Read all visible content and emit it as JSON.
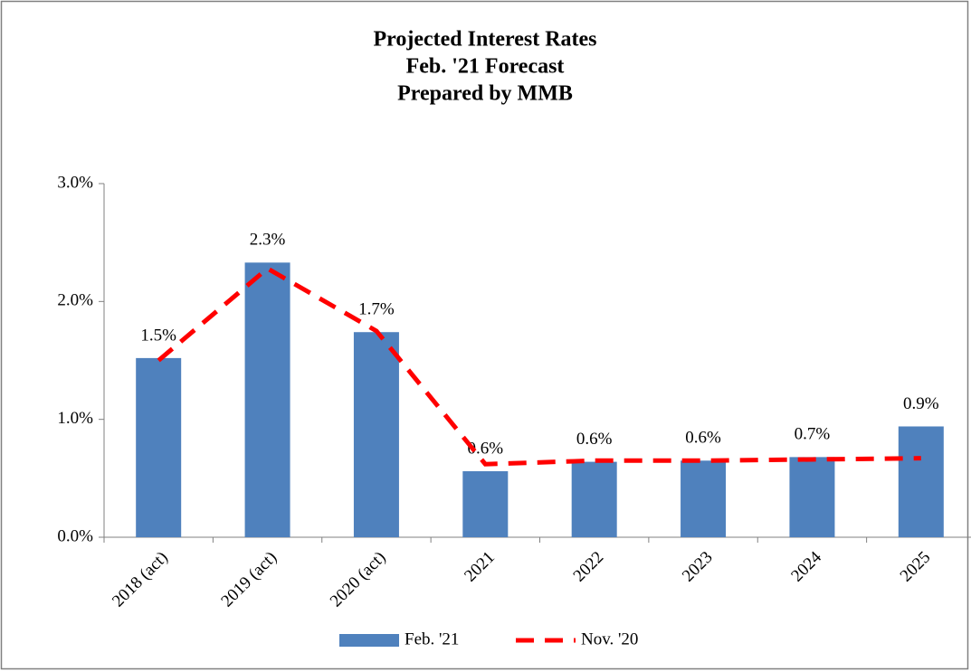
{
  "chart_data": {
    "type": "bar",
    "title": [
      "Projected Interest Rates",
      "Feb. '21 Forecast",
      "Prepared by MMB"
    ],
    "categories": [
      "2018 (act)",
      "2019 (act)",
      "2020 (act)",
      "2021",
      "2022",
      "2023",
      "2024",
      "2025"
    ],
    "series": [
      {
        "name": "Feb. '21",
        "type": "bar",
        "color": "#4f81bd",
        "values": [
          1.52,
          2.33,
          1.74,
          0.56,
          0.64,
          0.65,
          0.68,
          0.94
        ],
        "value_labels": [
          "1.5%",
          "2.3%",
          "1.7%",
          "0.6%",
          "0.6%",
          "0.6%",
          "0.7%",
          "0.9%"
        ]
      },
      {
        "name": "Nov. '20",
        "type": "line",
        "color": "#ff0000",
        "values": [
          1.5,
          2.28,
          1.75,
          0.62,
          0.65,
          0.65,
          0.66,
          0.67
        ]
      }
    ],
    "ylim": [
      0,
      3
    ],
    "yticks": [
      {
        "value": 0,
        "label": "0.0%"
      },
      {
        "value": 1,
        "label": "1.0%"
      },
      {
        "value": 2,
        "label": "2.0%"
      },
      {
        "value": 3,
        "label": "3.0%"
      }
    ],
    "legend": "bottom"
  }
}
